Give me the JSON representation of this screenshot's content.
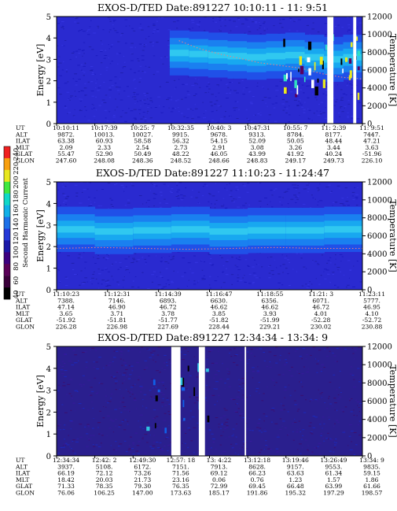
{
  "colorbar": {
    "label": "Second Harmonic Current",
    "ticks": [
      "40",
      "60",
      "80",
      "100",
      "120",
      "140",
      "160",
      "180",
      "200",
      "220",
      "240"
    ],
    "colors": [
      "#000000",
      "#3a003a",
      "#5a0058",
      "#3c0080",
      "#1a18a8",
      "#2438d8",
      "#1c70e8",
      "#10b0e8",
      "#10d8c8",
      "#40e840",
      "#e8e820",
      "#f8a010",
      "#f02020"
    ]
  },
  "chart_data": [
    {
      "type": "heatmap",
      "title": "EXOS-D/TED  Date:891227  10:10:11 - 11: 9:51",
      "ylabel": "Energy [eV]",
      "y2label": "Temperature [K]",
      "ylim": [
        0,
        5
      ],
      "y2lim": [
        0,
        12000
      ],
      "yticks": [
        "0",
        "1",
        "2",
        "3",
        "4",
        "5"
      ],
      "y2ticks": [
        "0",
        "2000",
        "4000",
        "6000",
        "8000",
        "10000",
        "12000"
      ],
      "band_center_ev": [
        3.3,
        3.25,
        3.2,
        3.15,
        3.1,
        3.15,
        3.2,
        3.1,
        3.0,
        3.1
      ],
      "temperature_k": [
        9300,
        8400,
        7800,
        7300,
        6800,
        6500,
        6200,
        5600,
        5200,
        5000
      ],
      "gaps_fraction": [
        [
          0.885,
          0.905
        ],
        [
          0.97,
          0.98
        ]
      ],
      "ephemeris": {
        "labels": [
          "UT",
          "ALT",
          "ILAT",
          "MLT",
          "GLAT",
          "GLON"
        ],
        "columns": [
          [
            "10:10:11",
            "9872.",
            "63.38",
            "2.09",
            "55.47",
            "247.60"
          ],
          [
            "10:17:39",
            "10013.",
            "60.93",
            "2.33",
            "52.90",
            "248.08"
          ],
          [
            "10:25: 7",
            "10027.",
            "58.58",
            "2.54",
            "50.49",
            "248.36"
          ],
          [
            "10:32:35",
            "9915.",
            "56.32",
            "2.73",
            "48.22",
            "248.52"
          ],
          [
            "10:40: 3",
            "9678.",
            "54.15",
            "2.91",
            "46.05",
            "248.66"
          ],
          [
            "10:47:31",
            "9313.",
            "52.09",
            "3.08",
            "43.99",
            "248.83"
          ],
          [
            "10:55: 7",
            "8784.",
            "50.05",
            "3.26",
            "41.92",
            "249.17"
          ],
          [
            "11: 2:39",
            "8177.",
            "48.44",
            "3.44",
            "40.24",
            "249.73"
          ],
          [
            "11: 9:51",
            "7447.",
            "47.21",
            "3.63",
            "-51.96",
            "226.10"
          ]
        ]
      }
    },
    {
      "type": "heatmap",
      "title": "EXOS-D/TED   Date:891227  11:10:23 - 11:24:47",
      "ylabel": "Energy [eV]",
      "y2label": "Temperature [K]",
      "ylim": [
        0,
        5
      ],
      "y2lim": [
        0,
        12000
      ],
      "yticks": [
        "0",
        "1",
        "2",
        "3",
        "4",
        "5"
      ],
      "y2ticks": [
        "0",
        "2000",
        "4000",
        "6000",
        "8000",
        "10000",
        "12000"
      ],
      "band_center_ev": [
        2.8,
        2.7,
        2.75,
        2.8,
        2.7,
        2.75,
        2.75,
        2.8
      ],
      "temperature_k": [
        4600,
        4700,
        4600,
        4500,
        4600,
        4700,
        4600,
        4600
      ],
      "gaps_fraction": [],
      "ephemeris": {
        "labels": [
          "UT",
          "ALT",
          "ILAT",
          "MLT",
          "GLAT",
          "GLON"
        ],
        "columns": [
          [
            "11:10:23",
            "7388.",
            "47.14",
            "3.65",
            "-51.92",
            "226.28"
          ],
          [
            "11:12:31",
            "7146.",
            "46.90",
            "3.71",
            "-51.81",
            "226.98"
          ],
          [
            "11:14:39",
            "6893.",
            "46.72",
            "3.78",
            "-51.77",
            "227.69"
          ],
          [
            "11:16:47",
            "6630.",
            "46.62",
            "3.85",
            "-51.82",
            "228.44"
          ],
          [
            "11:18:55",
            "6356.",
            "46.62",
            "3.93",
            "-51.99",
            "229.21"
          ],
          [
            "11:21: 3",
            "6071.",
            "46.72",
            "4.01",
            "-52.28",
            "230.02"
          ],
          [
            "11:23:11",
            "5777.",
            "46.95",
            "4.10",
            "-52.72",
            "230.88"
          ]
        ]
      }
    },
    {
      "type": "heatmap",
      "title": "EXOS-D/TED  Date:891227  12:34:34 - 13:34: 9",
      "ylabel": "Energy [eV]",
      "y2label": "Temperature [K]",
      "ylim": [
        0,
        5
      ],
      "y2lim": [
        0,
        12000
      ],
      "yticks": [
        "0",
        "1",
        "2",
        "3",
        "4",
        "5"
      ],
      "y2ticks": [
        "0",
        "2000",
        "4000",
        "6000",
        "8000",
        "10000",
        "12000"
      ],
      "band_center_ev": [],
      "temperature_k": [],
      "gaps_fraction": [
        [
          0.375,
          0.405
        ],
        [
          0.465,
          0.485
        ],
        [
          0.615,
          0.62
        ]
      ],
      "ephemeris": {
        "labels": [
          "UT",
          "ALT",
          "ILAT",
          "MLT",
          "GLAT",
          "GLON"
        ],
        "columns": [
          [
            "12:34:34",
            "3937.",
            "66.19",
            "18.42",
            "71.33",
            "76.06"
          ],
          [
            "12:42: 2",
            "5108.",
            "72.12",
            "20.03",
            "78.35",
            "106.25"
          ],
          [
            "12:49:30",
            "6172.",
            "73.26",
            "21.73",
            "79.30",
            "147.00"
          ],
          [
            "12:57: 18",
            "7151.",
            "71.56",
            "23.16",
            "76.35",
            "173.63"
          ],
          [
            "13: 4:22",
            "7913.",
            "69.12",
            "0.06",
            "72.99",
            "185.17"
          ],
          [
            "13:12:18",
            "8628.",
            "66.23",
            "0.76",
            "69.45",
            "191.86"
          ],
          [
            "13:19:46",
            "9157.",
            "63.63",
            "1.23",
            "66.48",
            "195.32"
          ],
          [
            "13:26:49",
            "9553.",
            "61.34",
            "1.57",
            "63.99",
            "197.29"
          ],
          [
            "13:34: 9",
            "9835.",
            "59.15",
            "1.86",
            "61.66",
            "198.57"
          ]
        ]
      }
    }
  ]
}
